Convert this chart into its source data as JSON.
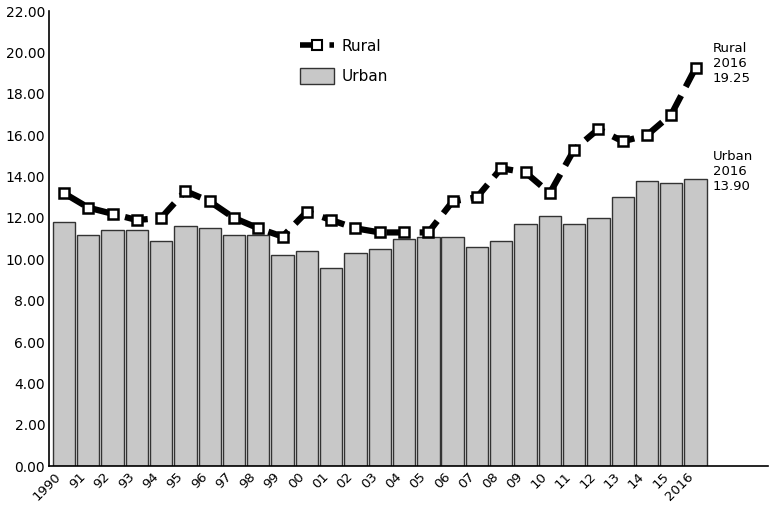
{
  "years": [
    "1990",
    "91",
    "92",
    "93",
    "94",
    "95",
    "96",
    "97",
    "98",
    "99",
    "00",
    "01",
    "02",
    "03",
    "04",
    "05",
    "06",
    "07",
    "08",
    "09",
    "10",
    "11",
    "12",
    "13",
    "14",
    "15",
    "2016"
  ],
  "urban": [
    11.8,
    11.2,
    11.4,
    11.4,
    10.9,
    11.6,
    11.5,
    11.2,
    11.2,
    10.2,
    10.4,
    9.6,
    10.3,
    10.5,
    11.0,
    11.1,
    11.1,
    10.6,
    10.9,
    11.7,
    12.1,
    11.7,
    12.0,
    13.0,
    13.8,
    13.7,
    13.9
  ],
  "rural": [
    13.2,
    12.5,
    12.2,
    11.9,
    12.0,
    13.3,
    12.8,
    12.0,
    11.5,
    11.1,
    12.3,
    11.9,
    11.5,
    11.3,
    11.3,
    11.3,
    12.8,
    13.0,
    14.4,
    14.2,
    13.2,
    15.3,
    16.3,
    15.7,
    16.0,
    17.0,
    19.25
  ],
  "bar_color": "#c8c8c8",
  "bar_edge_color": "#333333",
  "line_color": "#000000",
  "ylim": [
    0,
    22
  ],
  "yticks": [
    0.0,
    2.0,
    4.0,
    6.0,
    8.0,
    10.0,
    12.0,
    14.0,
    16.0,
    18.0,
    20.0,
    22.0
  ],
  "annotation_rural": "Rural\n2016\n19.25",
  "annotation_urban": "Urban\n2016\n13.90",
  "legend_rural": "Rural",
  "legend_urban": "Urban"
}
